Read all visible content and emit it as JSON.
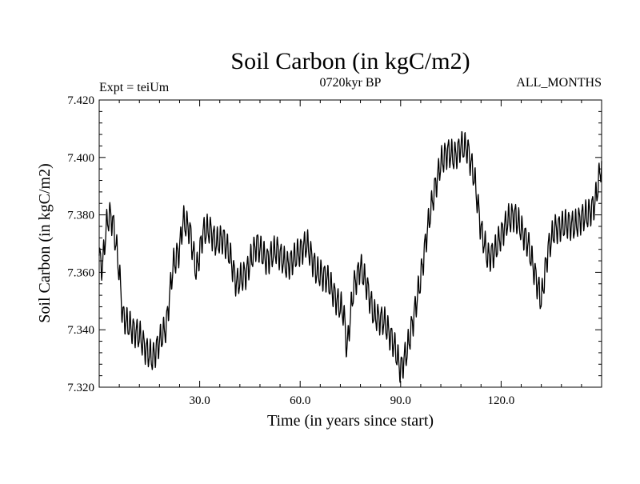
{
  "chart_data": {
    "type": "line",
    "title": "Soil Carbon (in kgC/m2)",
    "subtitle_center": "0720kyr BP",
    "annotation_left": "Expt = teiUm",
    "annotation_right": "ALL_MONTHS",
    "xlabel": "Time (in years since start)",
    "ylabel": "Soil Carbon (in kgC/m2)",
    "xlim": [
      0,
      150
    ],
    "ylim": [
      7.32,
      7.42
    ],
    "x_ticks": [
      30,
      60,
      90,
      120
    ],
    "x_tick_labels": [
      "30.0",
      "60.0",
      "90.0",
      "120.0"
    ],
    "y_ticks": [
      7.32,
      7.34,
      7.36,
      7.38,
      7.4,
      7.42
    ],
    "y_tick_labels": [
      "7.320",
      "7.340",
      "7.360",
      "7.380",
      "7.400",
      "7.420"
    ],
    "line_color": "#000000",
    "series": [
      {
        "name": "Soil Carbon",
        "x": [
          0,
          1,
          2,
          3,
          4,
          5,
          6,
          7,
          8,
          10,
          12,
          14,
          16,
          18,
          20,
          22,
          24,
          25,
          27,
          29,
          31,
          33,
          35,
          37,
          39,
          41,
          44,
          47,
          50,
          53,
          56,
          59,
          62,
          65,
          68,
          71,
          73,
          74,
          75,
          76,
          78,
          80,
          82,
          85,
          88,
          90,
          92,
          94,
          96,
          98,
          100,
          102,
          104,
          106,
          108,
          110,
          112,
          114,
          116,
          118,
          120,
          122,
          124,
          126,
          128,
          130,
          132,
          134,
          136,
          138,
          140,
          142,
          144,
          146,
          148,
          150
        ],
        "y": [
          7.365,
          7.362,
          7.375,
          7.38,
          7.378,
          7.37,
          7.36,
          7.345,
          7.343,
          7.34,
          7.338,
          7.333,
          7.33,
          7.336,
          7.341,
          7.362,
          7.368,
          7.378,
          7.375,
          7.36,
          7.374,
          7.375,
          7.37,
          7.372,
          7.366,
          7.356,
          7.36,
          7.37,
          7.364,
          7.368,
          7.362,
          7.366,
          7.37,
          7.36,
          7.358,
          7.35,
          7.346,
          7.333,
          7.345,
          7.355,
          7.362,
          7.355,
          7.345,
          7.343,
          7.335,
          7.326,
          7.333,
          7.345,
          7.358,
          7.375,
          7.388,
          7.398,
          7.402,
          7.4,
          7.404,
          7.403,
          7.393,
          7.375,
          7.365,
          7.367,
          7.373,
          7.378,
          7.38,
          7.375,
          7.37,
          7.36,
          7.35,
          7.368,
          7.375,
          7.376,
          7.377,
          7.376,
          7.379,
          7.38,
          7.384,
          7.398
        ]
      }
    ]
  }
}
